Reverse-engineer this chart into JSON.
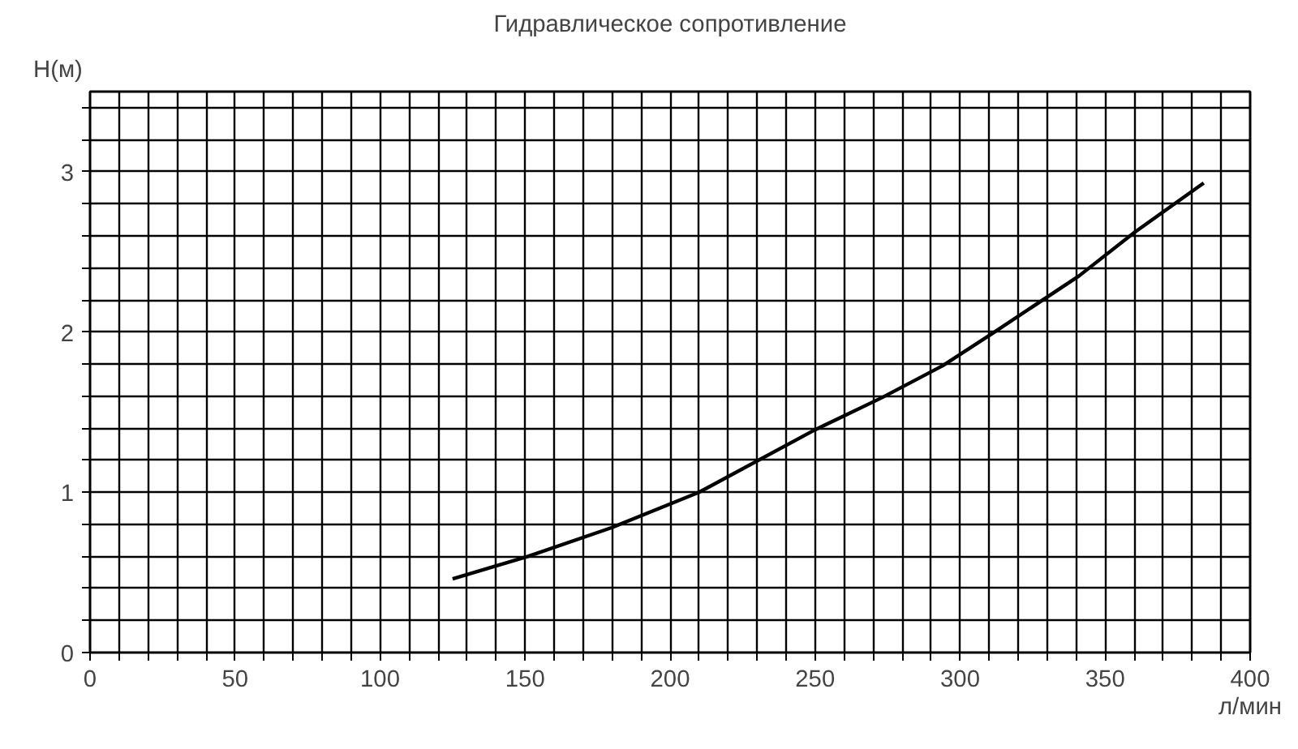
{
  "chart_data": {
    "type": "line",
    "title": "Гидравлическое сопротивление",
    "xlabel": "л/мин",
    "ylabel": "H(м)",
    "x": [
      125,
      151,
      180,
      210,
      250,
      273,
      294,
      311,
      341,
      360,
      384
    ],
    "series": [
      {
        "color": "#000000",
        "values": [
          0.46,
          0.6,
          0.78,
          1.0,
          1.39,
          1.59,
          1.79,
          1.99,
          2.35,
          2.62,
          2.93
        ]
      }
    ],
    "xlim": [
      0,
      400
    ],
    "ylim": [
      0,
      3.5
    ],
    "xticks": [
      0,
      {
        "value": 10,
        "label": null
      },
      {
        "value": 20,
        "label": null
      },
      {
        "value": 30,
        "label": null
      },
      {
        "value": 40,
        "label": null
      },
      50,
      {
        "value": 60,
        "label": null
      },
      {
        "value": 70,
        "label": null
      },
      {
        "value": 80,
        "label": null
      },
      {
        "value": 90,
        "label": null
      },
      100,
      {
        "value": 110,
        "label": null
      },
      {
        "value": 120,
        "label": null
      },
      {
        "value": 130,
        "label": null
      },
      {
        "value": 140,
        "label": null
      },
      150,
      {
        "value": 160,
        "label": null
      },
      {
        "value": 170,
        "label": null
      },
      {
        "value": 180,
        "label": null
      },
      {
        "value": 190,
        "label": null
      },
      200,
      {
        "value": 210,
        "label": null
      },
      {
        "value": 220,
        "label": null
      },
      {
        "value": 230,
        "label": null
      },
      {
        "value": 240,
        "label": null
      },
      250,
      {
        "value": 260,
        "label": null
      },
      {
        "value": 270,
        "label": null
      },
      {
        "value": 280,
        "label": null
      },
      {
        "value": 290,
        "label": null
      },
      300,
      {
        "value": 310,
        "label": null
      },
      {
        "value": 320,
        "label": null
      },
      {
        "value": 330,
        "label": null
      },
      {
        "value": 340,
        "label": null
      },
      350,
      {
        "value": 360,
        "label": null
      },
      {
        "value": 370,
        "label": null
      },
      {
        "value": 380,
        "label": null
      },
      {
        "value": 390,
        "label": null
      },
      400
    ],
    "yticks": [
      0,
      {
        "value": 0.2,
        "label": null
      },
      {
        "value": 0.4,
        "label": null
      },
      {
        "value": 0.6,
        "label": null
      },
      {
        "value": 0.8,
        "label": null
      },
      1,
      {
        "value": 1.2,
        "label": null
      },
      {
        "value": 1.4,
        "label": null
      },
      {
        "value": 1.6,
        "label": null
      },
      {
        "value": 1.8,
        "label": null
      },
      2,
      {
        "value": 2.2,
        "label": null
      },
      {
        "value": 2.4,
        "label": null
      },
      {
        "value": 2.6,
        "label": null
      },
      {
        "value": 2.8,
        "label": null
      },
      3,
      {
        "value": 3.2,
        "label": null
      },
      {
        "value": 3.4,
        "label": null
      }
    ],
    "grid": true,
    "marker": "none",
    "line_style": "solid"
  }
}
